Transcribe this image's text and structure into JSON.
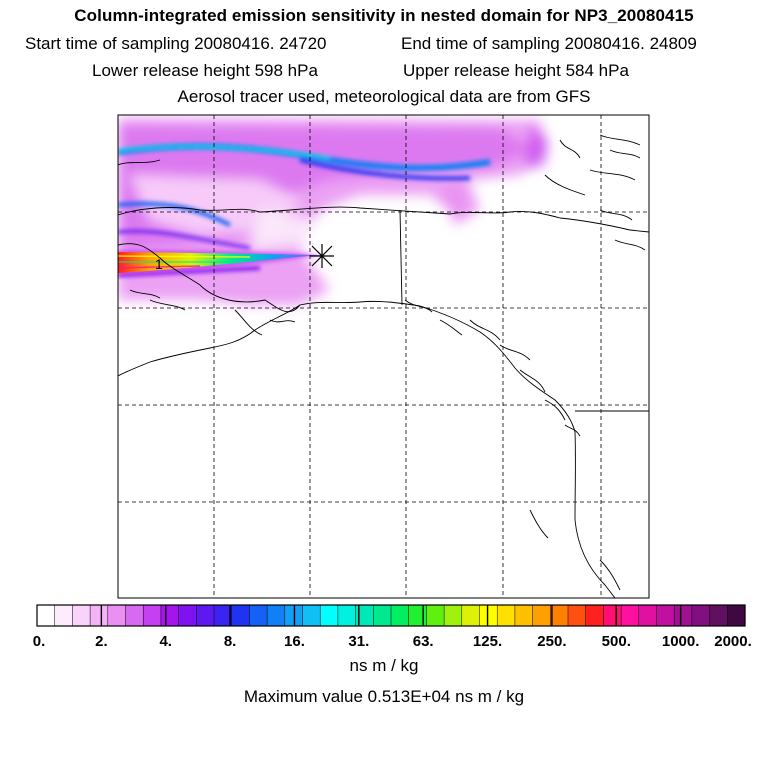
{
  "header": {
    "title": "Column-integrated emission sensitivity in nested domain for NP3_20080415",
    "start_label": "Start time of sampling",
    "start_value": "20080416. 24720",
    "end_label": "End time of sampling",
    "end_value": "20080416. 24809",
    "lower_label": "Lower release height",
    "lower_value": "598 hPa",
    "upper_label": "Upper release height",
    "upper_value": "584 hPa",
    "tracer_line": "Aerosol tracer used, meteorological data are from GFS"
  },
  "colorbar": {
    "tick_labels": [
      "0.",
      "2.",
      "4.",
      "8.",
      "16.",
      "31.",
      "63.",
      "125.",
      "250.",
      "500.",
      "1000.",
      "2000."
    ],
    "colors": [
      "#ffffff",
      "#fcecfc",
      "#f9d3fa",
      "#f3b3f6",
      "#e990f2",
      "#d66af0",
      "#c440f0",
      "#a415ee",
      "#7f12f0",
      "#5e18f0",
      "#3b24f2",
      "#2033f2",
      "#1560f5",
      "#1080f5",
      "#10a0f5",
      "#10c0f5",
      "#00ffff",
      "#00f0e0",
      "#00e8b8",
      "#00e890",
      "#00ee60",
      "#20f030",
      "#60f010",
      "#a0f010",
      "#ddf008",
      "#ffff00",
      "#ffe000",
      "#ffc000",
      "#ffa000",
      "#ff8000",
      "#ff5010",
      "#ff2020",
      "#ff1070",
      "#ff10a0",
      "#e010a0",
      "#c010a0",
      "#a01090",
      "#801080",
      "#601060",
      "#400840"
    ],
    "units": "ns m / kg"
  },
  "footer": {
    "max_label": "Maximum value",
    "max_value": "0.513E+04",
    "max_units": "ns m / kg"
  },
  "map": {
    "release_marker": "release-point-star",
    "peak_marker_label": "1"
  }
}
